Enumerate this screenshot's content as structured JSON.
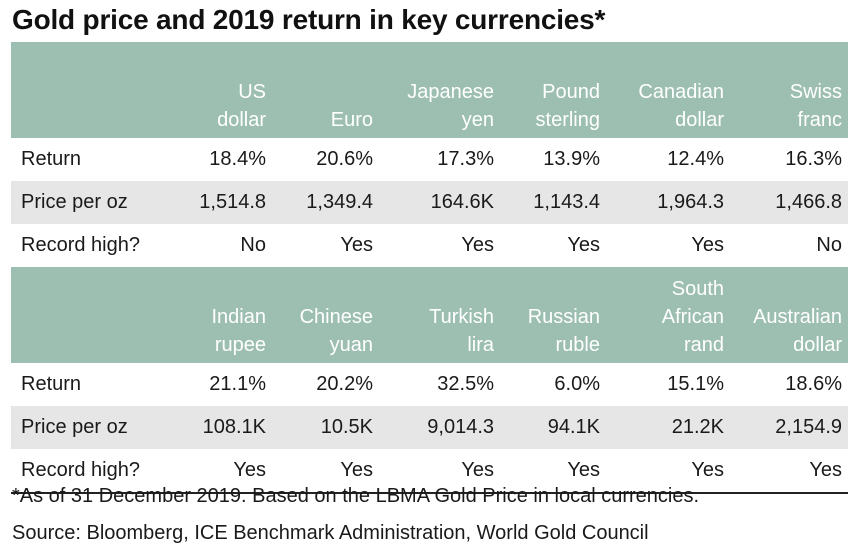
{
  "title": "Gold price and 2019 return in key currencies*",
  "chart_data": {
    "type": "table",
    "row_labels": [
      "Return",
      "Price per oz",
      "Record high?"
    ],
    "blocks": [
      {
        "columns": [
          {
            "lines": [
              "US",
              "dollar"
            ],
            "return": "18.4%",
            "price": "1,514.8",
            "record_high": "No"
          },
          {
            "lines": [
              "Euro"
            ],
            "return": "20.6%",
            "price": "1,349.4",
            "record_high": "Yes"
          },
          {
            "lines": [
              "Japanese",
              "yen"
            ],
            "return": "17.3%",
            "price": "164.6K",
            "record_high": "Yes"
          },
          {
            "lines": [
              "Pound",
              "sterling"
            ],
            "return": "13.9%",
            "price": "1,143.4",
            "record_high": "Yes"
          },
          {
            "lines": [
              "Canadian",
              "dollar"
            ],
            "return": "12.4%",
            "price": "1,964.3",
            "record_high": "Yes"
          },
          {
            "lines": [
              "Swiss",
              "franc"
            ],
            "return": "16.3%",
            "price": "1,466.8",
            "record_high": "No"
          }
        ]
      },
      {
        "columns": [
          {
            "lines": [
              "Indian",
              "rupee"
            ],
            "return": "21.1%",
            "price": "108.1K",
            "record_high": "Yes"
          },
          {
            "lines": [
              "Chinese",
              "yuan"
            ],
            "return": "20.2%",
            "price": "10.5K",
            "record_high": "Yes"
          },
          {
            "lines": [
              "Turkish",
              "lira"
            ],
            "return": "32.5%",
            "price": "9,014.3",
            "record_high": "Yes"
          },
          {
            "lines": [
              "Russian",
              "ruble"
            ],
            "return": "6.0%",
            "price": "94.1K",
            "record_high": "Yes"
          },
          {
            "lines": [
              "South",
              "African",
              "rand"
            ],
            "return": "15.1%",
            "price": "21.2K",
            "record_high": "Yes"
          },
          {
            "lines": [
              "Australian",
              "dollar"
            ],
            "return": "18.6%",
            "price": "2,154.9",
            "record_high": "Yes"
          }
        ]
      }
    ]
  },
  "colors": {
    "header_bg": "#9dbfb2",
    "header_text": "#ffffff",
    "shade_row": "#e6e6e6"
  },
  "footnote": "*As of 31 December 2019. Based on the LBMA Gold Price in local currencies.",
  "source": "Source: Bloomberg, ICE Benchmark Administration, World Gold Council"
}
